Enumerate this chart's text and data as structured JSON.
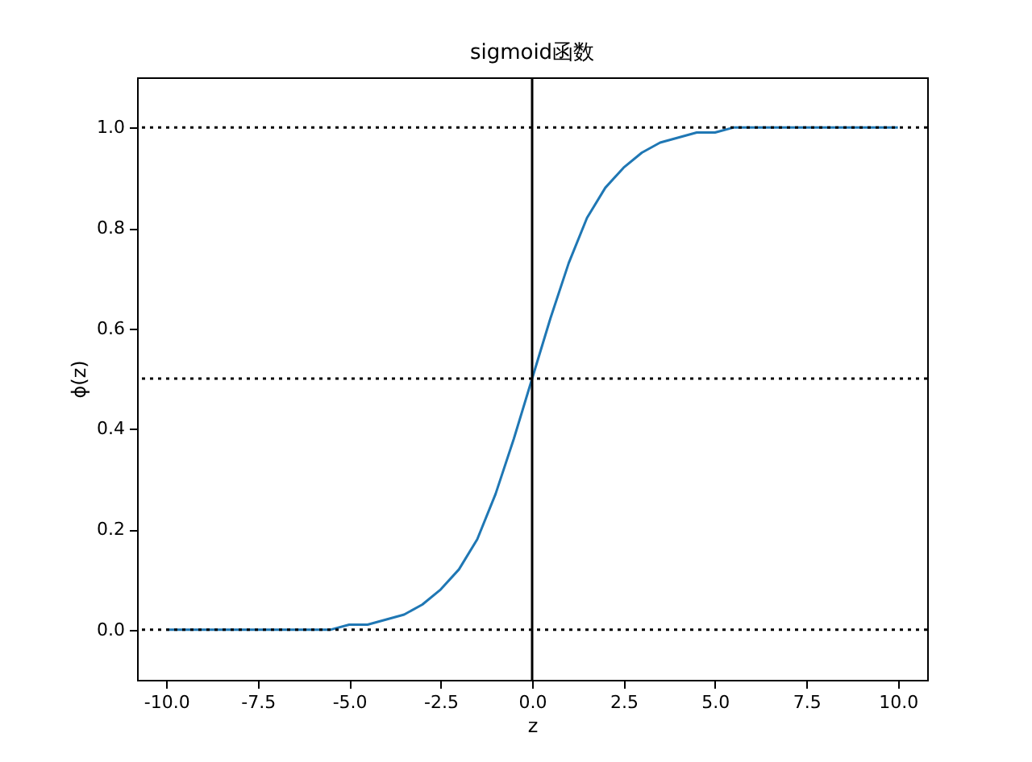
{
  "chart_data": {
    "type": "line",
    "title": "sigmoid函数",
    "xlabel": "z",
    "ylabel": "ϕ(z)",
    "x": [
      -10,
      -9.5,
      -9,
      -8.5,
      -8,
      -7.5,
      -7,
      -6.5,
      -6,
      -5.5,
      -5,
      -4.5,
      -4,
      -3.5,
      -3,
      -2.5,
      -2,
      -1.5,
      -1,
      -0.5,
      0,
      0.5,
      1,
      1.5,
      2,
      2.5,
      3,
      3.5,
      4,
      4.5,
      5,
      5.5,
      6,
      6.5,
      7,
      7.5,
      8,
      8.5,
      9,
      9.5,
      10
    ],
    "series": [
      {
        "color": "#1f77b4",
        "values": [
          0,
          0,
          0,
          0,
          0,
          0,
          0,
          0,
          0,
          0,
          0.01,
          0.01,
          0.02,
          0.03,
          0.05,
          0.08,
          0.12,
          0.18,
          0.27,
          0.38,
          0.5,
          0.62,
          0.73,
          0.82,
          0.88,
          0.92,
          0.95,
          0.97,
          0.98,
          0.99,
          0.99,
          1,
          1,
          1,
          1,
          1,
          1,
          1,
          1,
          1,
          1
        ]
      }
    ],
    "xlim": [
      -10.8,
      10.8
    ],
    "ylim": [
      -0.1,
      1.1
    ],
    "xticks": [
      {
        "value": -10,
        "label": "-10.0"
      },
      {
        "value": -7.5,
        "label": "-7.5"
      },
      {
        "value": -5,
        "label": "-5.0"
      },
      {
        "value": -2.5,
        "label": "-2.5"
      },
      {
        "value": 0,
        "label": "0.0"
      },
      {
        "value": 2.5,
        "label": "2.5"
      },
      {
        "value": 5,
        "label": "5.0"
      },
      {
        "value": 7.5,
        "label": "7.5"
      },
      {
        "value": 10,
        "label": "10.0"
      }
    ],
    "yticks": [
      {
        "value": 0,
        "label": "0.0"
      },
      {
        "value": 0.2,
        "label": "0.2"
      },
      {
        "value": 0.4,
        "label": "0.4"
      },
      {
        "value": 0.6,
        "label": "0.6"
      },
      {
        "value": 0.8,
        "label": "0.8"
      },
      {
        "value": 1,
        "label": "1.0"
      }
    ],
    "ref_lines": [
      {
        "axis": "y",
        "value": 0,
        "color": "#000000",
        "line_style": "dotted"
      },
      {
        "axis": "y",
        "value": 0.5,
        "color": "#000000",
        "line_style": "dotted"
      },
      {
        "axis": "y",
        "value": 1,
        "color": "#000000",
        "line_style": "dotted"
      },
      {
        "axis": "x",
        "value": 0,
        "color": "#000000",
        "line_style": "solid"
      }
    ],
    "grid": false,
    "line_style": "solid",
    "marker": "none"
  }
}
